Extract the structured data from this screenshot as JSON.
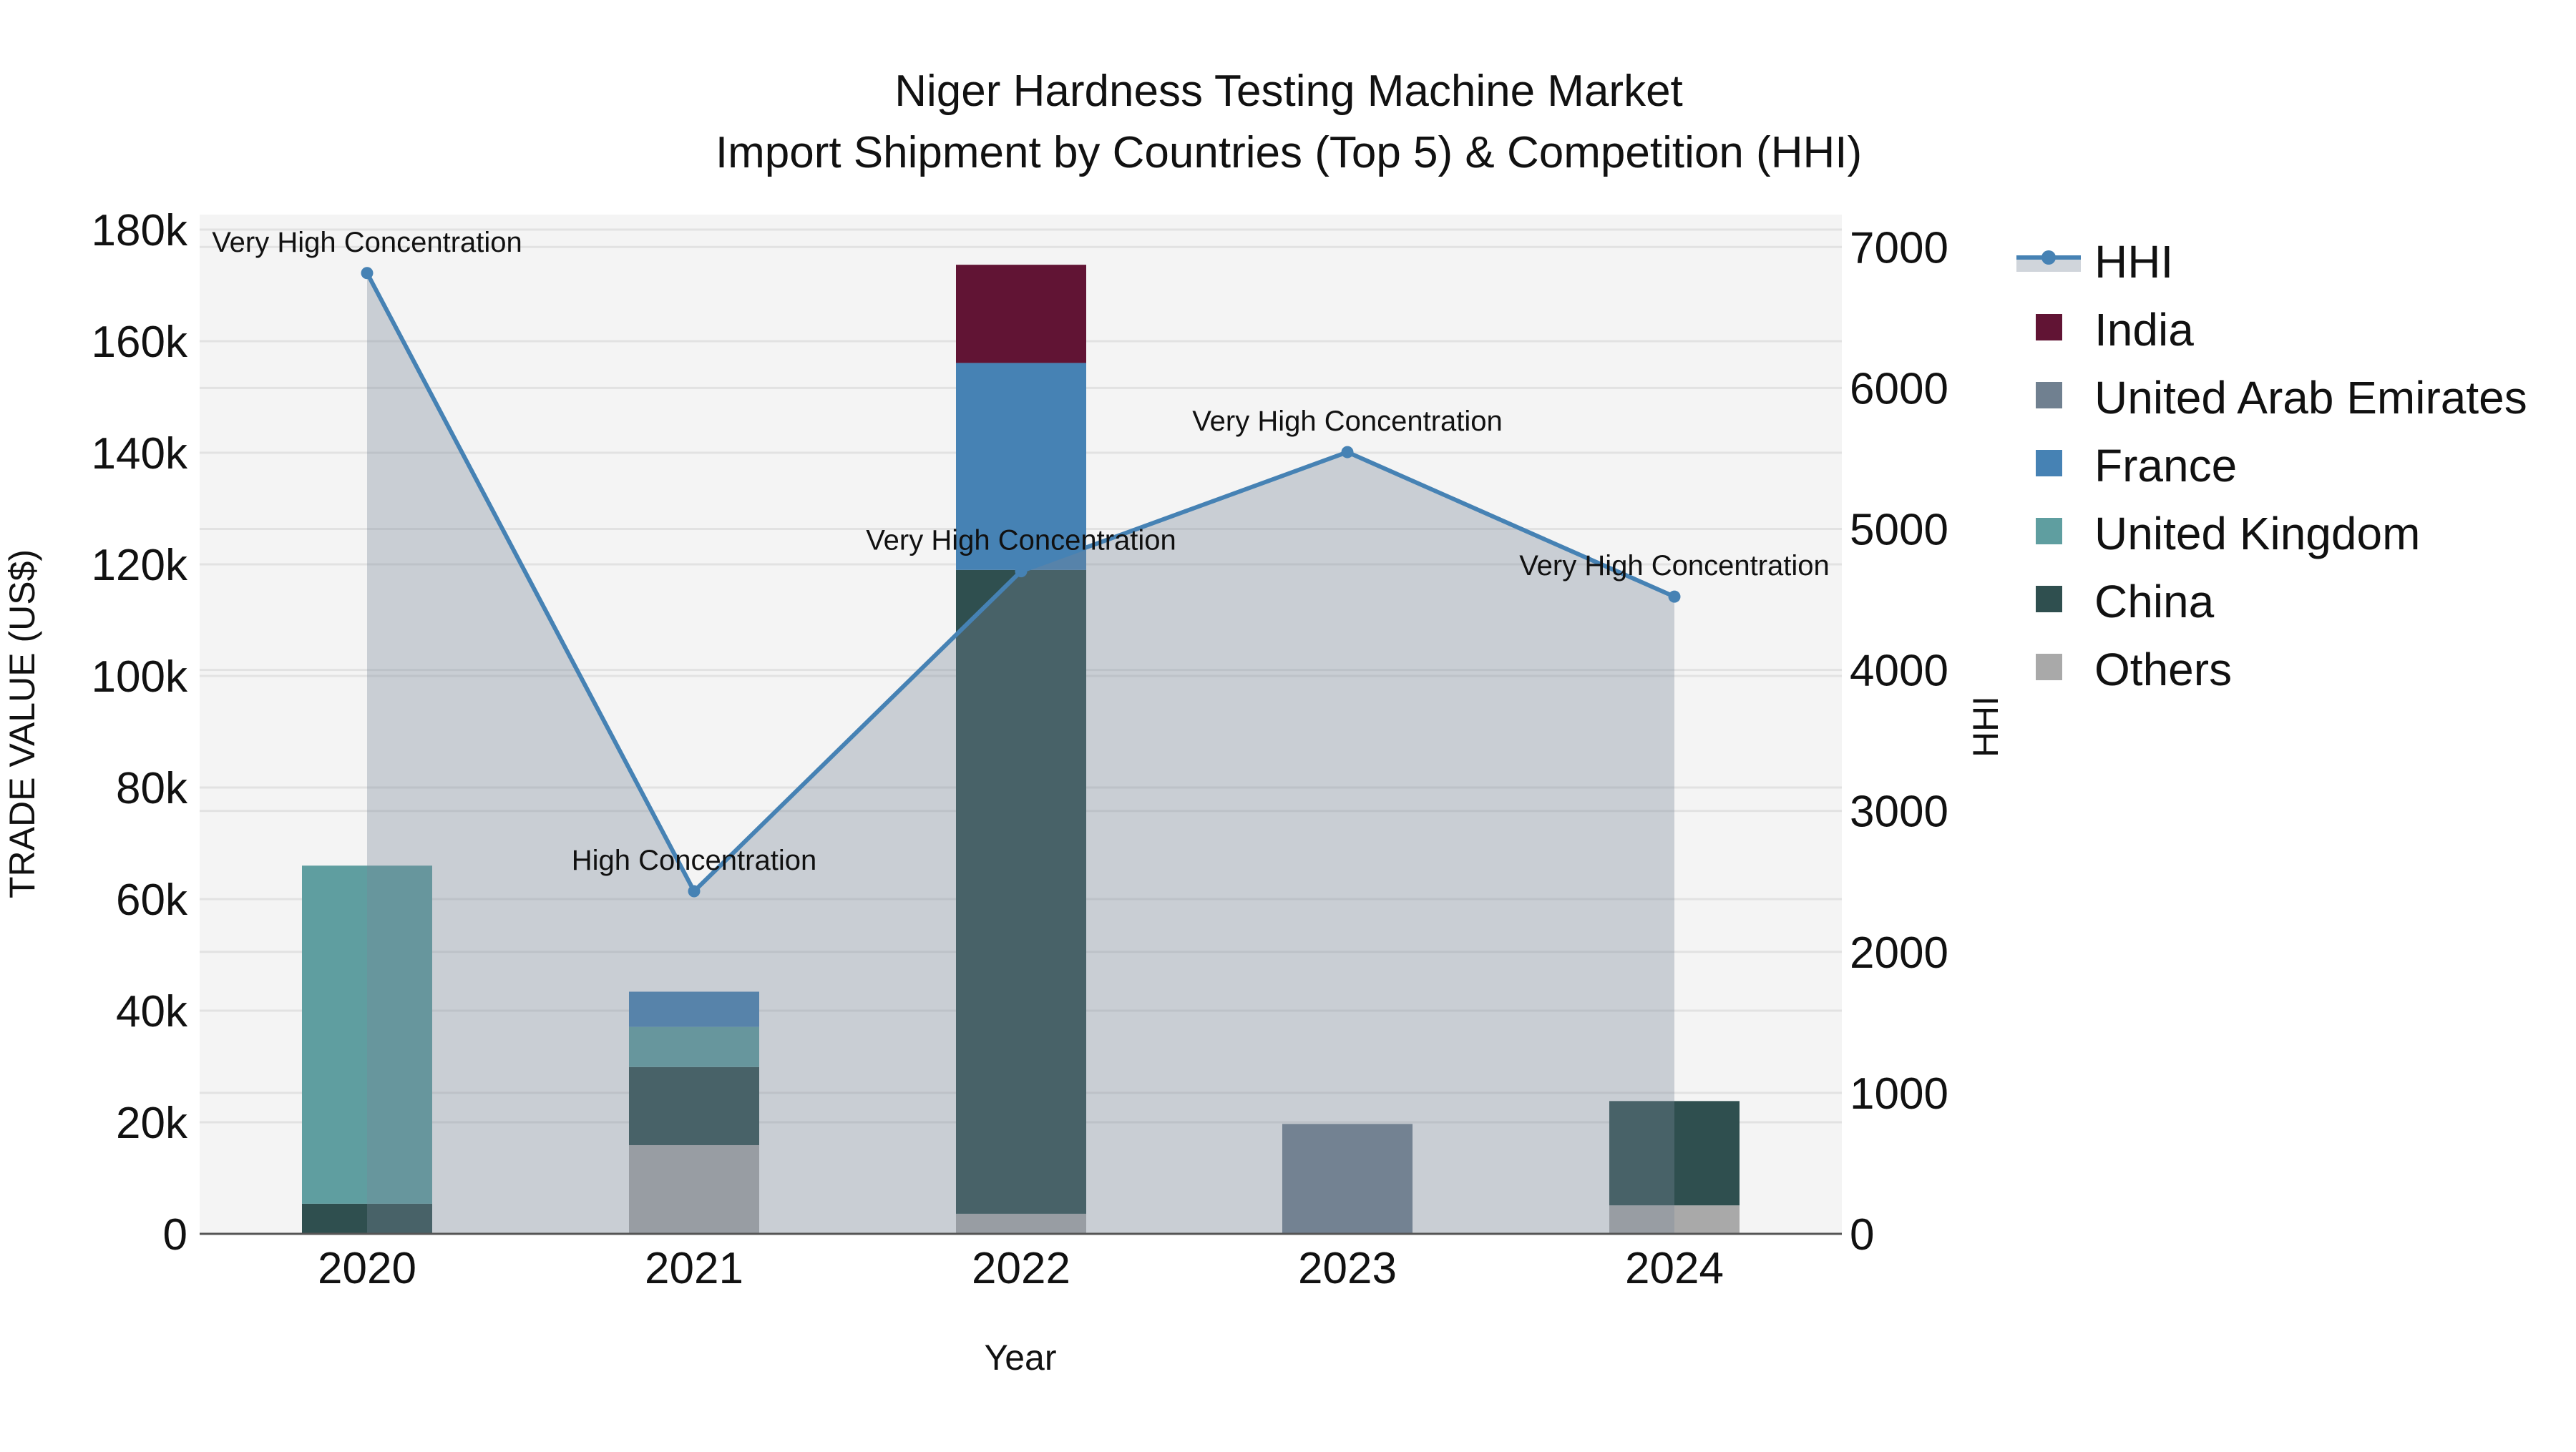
{
  "title": {
    "line1": "Niger Hardness Testing Machine Market",
    "line2": "Import Shipment by Countries (Top 5) & Competition (HHI)"
  },
  "axes": {
    "x_title": "Year",
    "y_left_title": "TRADE VALUE (US$)",
    "y_right_title": "HHI",
    "y_left_ticks": [
      "0",
      "20k",
      "40k",
      "60k",
      "80k",
      "100k",
      "120k",
      "140k",
      "160k",
      "180k"
    ],
    "y_right_ticks": [
      "0",
      "1000",
      "2000",
      "3000",
      "4000",
      "5000",
      "6000",
      "7000"
    ]
  },
  "colors": {
    "India": "#611434",
    "United Arab Emirates": "#708090",
    "France": "#4682b4",
    "United Kingdom": "#5f9ea0",
    "China": "#2f4f4f",
    "Others": "#a9a9a9",
    "hhi_line": "#4682b4",
    "hhi_fill": "rgba(119,136,153,0.35)",
    "plot_bg": "#f4f4f4",
    "grid": "#e2e2e2"
  },
  "legend": [
    {
      "label": "HHI",
      "type": "line"
    },
    {
      "label": "India",
      "type": "bar"
    },
    {
      "label": "United Arab Emirates",
      "type": "bar"
    },
    {
      "label": "France",
      "type": "bar"
    },
    {
      "label": "United Kingdom",
      "type": "bar"
    },
    {
      "label": "China",
      "type": "bar"
    },
    {
      "label": "Others",
      "type": "bar"
    }
  ],
  "chart_data": {
    "type": "bar",
    "title": "Niger Hardness Testing Machine Market — Import Shipment by Countries (Top 5) & Competition (HHI)",
    "xlabel": "Year",
    "ylabel": "TRADE VALUE (US$)",
    "y2label": "HHI",
    "categories": [
      "2020",
      "2021",
      "2022",
      "2023",
      "2024"
    ],
    "ylim": [
      0,
      180000
    ],
    "y2lim": [
      0,
      7000
    ],
    "grid": true,
    "legend_position": "right",
    "stack_order_bottom_to_top": [
      "Others",
      "China",
      "United Kingdom",
      "France",
      "United Arab Emirates",
      "India"
    ],
    "series": [
      {
        "name": "Others",
        "values": [
          0,
          15900,
          3600,
          0,
          5100
        ]
      },
      {
        "name": "China",
        "values": [
          5400,
          14000,
          115400,
          0,
          18700
        ]
      },
      {
        "name": "United Kingdom",
        "values": [
          60600,
          7200,
          0,
          0,
          0
        ]
      },
      {
        "name": "France",
        "values": [
          0,
          6300,
          37100,
          0,
          0
        ]
      },
      {
        "name": "United Arab Emirates",
        "values": [
          0,
          0,
          0,
          19700,
          0
        ]
      },
      {
        "name": "India",
        "values": [
          0,
          0,
          17600,
          0,
          0
        ]
      }
    ],
    "line_series": {
      "name": "HHI",
      "axis": "right",
      "values": [
        6815,
        2430,
        4700,
        5545,
        4520
      ],
      "annotations": [
        "Very High Concentration",
        "High Concentration",
        "Very High Concentration",
        "Very High Concentration",
        "Very High Concentration"
      ]
    }
  }
}
